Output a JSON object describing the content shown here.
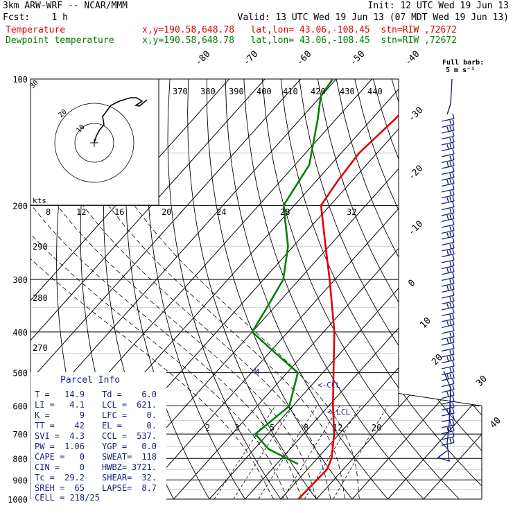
{
  "header": {
    "model": "3km ARW-WRF -- NCAR/MMM",
    "init": "Init: 12 UTC Wed 19 Jun 13",
    "fcst": "Fcst:    1 h",
    "valid": "Valid: 13 UTC Wed 19 Jun 13 (07 MDT Wed 19 Jun 13)",
    "temp_label": "Temperature",
    "dew_label": "Dewpoint temperature",
    "loc_temp": "x,y=190.58,648.78   lat,lon= 43.06,-108.45  stn=RIW ,72672",
    "loc_dew": "x,y=190.58,648.78   lat,lon= 43.06,-108.45  stn=RIW ,72672",
    "full_barb": "Full barb:",
    "full_barb_units": "5 m s⁻¹"
  },
  "colors": {
    "temperature": "#e00000",
    "dewpoint": "#008000",
    "parcel": "#1a237e"
  },
  "chart_data": {
    "type": "line",
    "subtype": "skew-T log-p sounding",
    "pressure_ticks": [
      "100",
      "200",
      "300",
      "400",
      "500",
      "600",
      "700",
      "800",
      "900",
      "1000"
    ],
    "temp_isotherm_labels": [
      "-80",
      "-70",
      "-60",
      "-50",
      "-40",
      "-30",
      "-20",
      "-10",
      "0",
      "10",
      "20",
      "30",
      "40"
    ],
    "mixing_ratio_labels": [
      "2",
      "3",
      "5",
      "8",
      "12",
      "20"
    ],
    "theta_labels": [
      "370",
      "380",
      "390",
      "400",
      "410",
      "420",
      "430",
      "440"
    ],
    "hodo_speed_labels": [
      "8",
      "12",
      "16",
      "20",
      "24",
      "28",
      "32"
    ],
    "hodo_ring_labels": [
      "30",
      "20",
      "10"
    ],
    "hodo_units": "kts",
    "left_axis_extra": [
      "290",
      "280",
      "270"
    ],
    "series": [
      {
        "name": "Temperature",
        "color": "#e00000",
        "points": [
          [
            1000,
            14.9
          ],
          [
            850,
            15.5
          ],
          [
            800,
            14.0
          ],
          [
            700,
            8.6
          ],
          [
            600,
            1.2
          ],
          [
            500,
            -7.0
          ],
          [
            400,
            -17.0
          ],
          [
            300,
            -31.5
          ],
          [
            250,
            -41.0
          ],
          [
            200,
            -52.5
          ],
          [
            175,
            -54.0
          ],
          [
            150,
            -55.0
          ],
          [
            125,
            -53.5
          ],
          [
            100,
            -52.5
          ]
        ]
      },
      {
        "name": "Dewpoint temperature",
        "color": "#008000",
        "points": [
          [
            825,
            6.0
          ],
          [
            760,
            -6.0
          ],
          [
            700,
            -13.5
          ],
          [
            600,
            -11.0
          ],
          [
            500,
            -17.0
          ],
          [
            450,
            -28.0
          ],
          [
            400,
            -40.0
          ],
          [
            350,
            -42.0
          ],
          [
            300,
            -44.5
          ],
          [
            250,
            -51.5
          ],
          [
            200,
            -63.0
          ],
          [
            160,
            -66.0
          ],
          [
            125,
            -75.0
          ],
          [
            110,
            -80.0
          ],
          [
            100,
            -81.0
          ]
        ]
      }
    ],
    "annotations": [
      "<-CCL",
      "<-LCL",
      "M"
    ],
    "parcel_info": {
      "title": "Parcel Info",
      "rows": [
        [
          "T   =",
          "14.9",
          "Td  =",
          "6.0"
        ],
        [
          "LI  =",
          "4.1",
          "LCL =",
          "621."
        ],
        [
          "K   =",
          "9",
          "LFC =",
          "0."
        ],
        [
          "TT  =",
          "42",
          "EL  =",
          "0."
        ],
        [
          "SVI =",
          "4.3",
          "CCL =",
          "537."
        ],
        [
          "PW  =",
          "1.06",
          "YGP =",
          "0.0"
        ],
        [
          "CAPE =",
          "0",
          "SWEAT=",
          "118"
        ],
        [
          "CIN  =",
          "0",
          "HWBZ=",
          "3721."
        ],
        [
          "Tc   =",
          "29.2",
          "SHEAR=",
          "32."
        ],
        [
          "SREH =",
          "65",
          "LAPSE=",
          "8.7"
        ]
      ],
      "cell": "CELL = 218/25"
    }
  }
}
